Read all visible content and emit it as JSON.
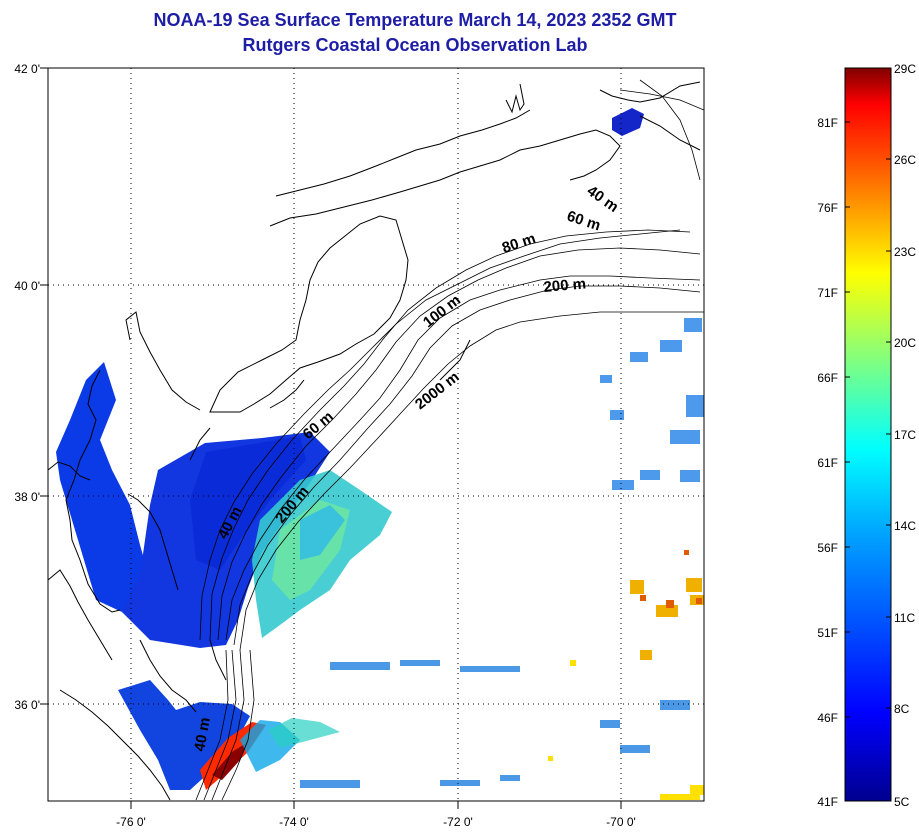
{
  "header": {
    "title": "NOAA-19 Sea Surface Temperature March 14, 2023 2352 GMT",
    "subtitle": "Rutgers Coastal Ocean Observation Lab"
  },
  "map": {
    "lat_ticks": [
      {
        "value": 42,
        "label": "42 0'"
      },
      {
        "value": 40,
        "label": "40 0'"
      },
      {
        "value": 38,
        "label": "38 0'"
      },
      {
        "value": 36,
        "label": "36 0'"
      }
    ],
    "lon_ticks": [
      {
        "value": -76,
        "label": "-76 0'"
      },
      {
        "value": -74,
        "label": "-74 0'"
      },
      {
        "value": -72,
        "label": "-72 0'"
      },
      {
        "value": -70,
        "label": "-70 0'"
      }
    ],
    "grid": "dotted",
    "depth_labels": [
      "40 m",
      "60 m",
      "80 m",
      "200 m",
      "100 m",
      "2000 m",
      "60 m",
      "40 m",
      "200 m",
      "40 m"
    ]
  },
  "colorbar": {
    "fahrenheit_labels": [
      "81F",
      "76F",
      "71F",
      "66F",
      "61F",
      "56F",
      "51F",
      "46F",
      "41F"
    ],
    "celsius_labels": [
      "29C",
      "26C",
      "23C",
      "20C",
      "17C",
      "14C",
      "11C",
      "8C",
      "5C"
    ],
    "colors": [
      "#7f0000",
      "#ff0000",
      "#ff8000",
      "#ffff00",
      "#80ff80",
      "#00ffff",
      "#0080ff",
      "#0000ff",
      "#00008f"
    ]
  }
}
